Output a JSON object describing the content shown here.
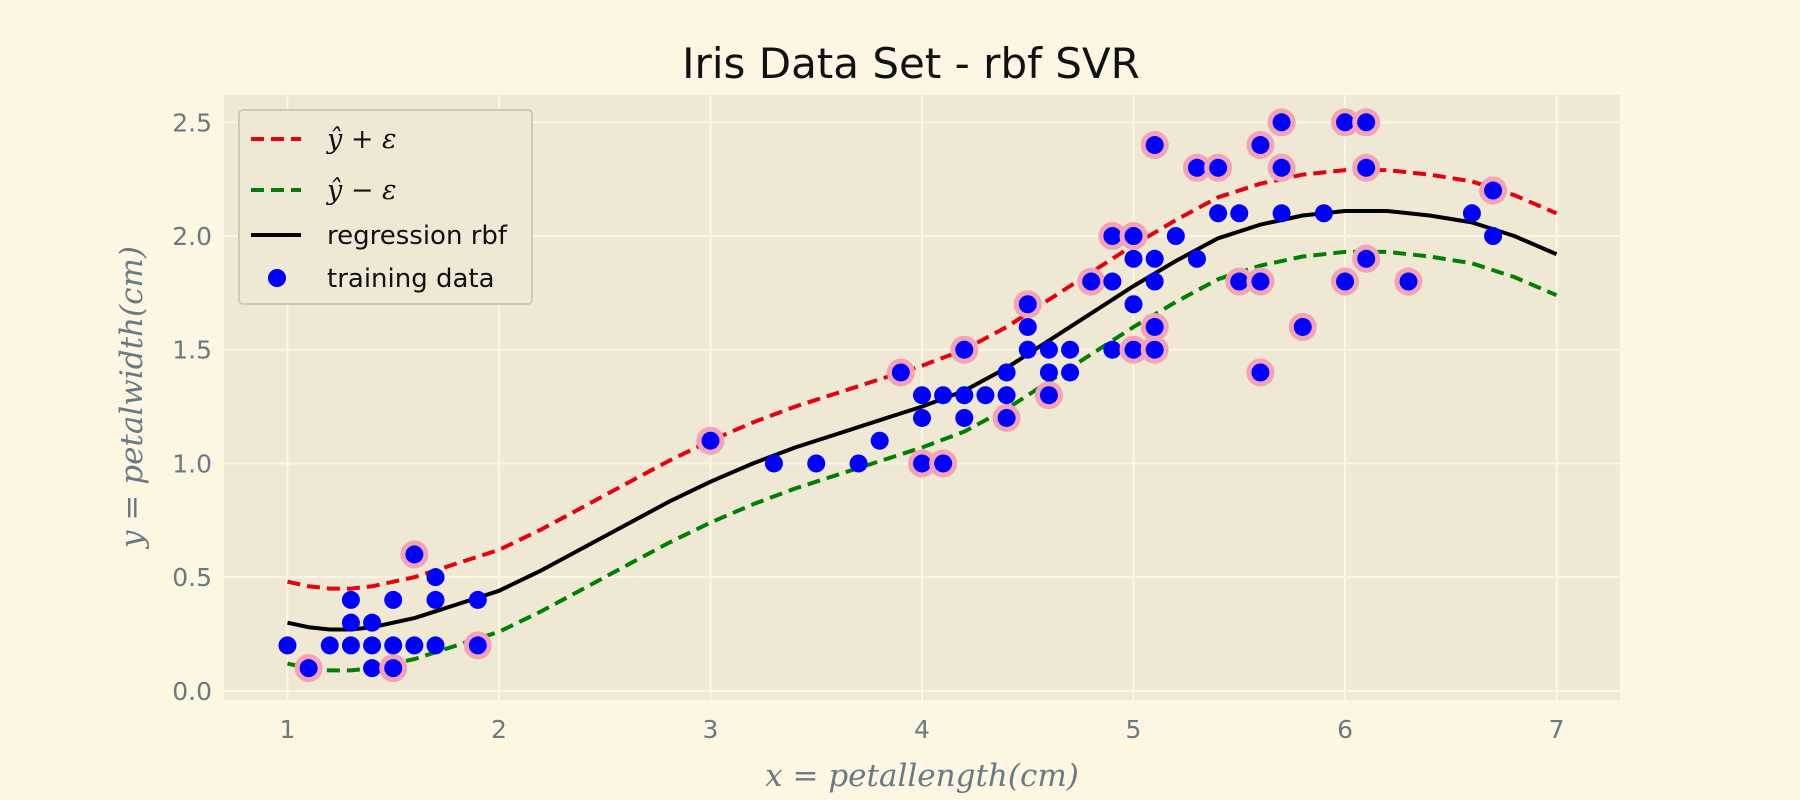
{
  "chart_data": {
    "type": "scatter",
    "title": "Iris Data Set - rbf SVR",
    "xlabel": "x = petallength(cm)",
    "ylabel": "y = petalwidth(cm)",
    "xlim": [
      0.7,
      7.3
    ],
    "ylim": [
      -0.04,
      2.62
    ],
    "xticks": [
      1,
      2,
      3,
      4,
      5,
      6,
      7
    ],
    "yticks": [
      0.0,
      0.5,
      1.0,
      1.5,
      2.0,
      2.5
    ],
    "xtick_labels": [
      "1",
      "2",
      "3",
      "4",
      "5",
      "6",
      "7"
    ],
    "ytick_labels": [
      "0.0",
      "0.5",
      "1.0",
      "1.5",
      "2.0",
      "2.5"
    ],
    "grid": true,
    "legend_position": "top-left",
    "epsilon": 0.18,
    "colors": {
      "background": "#fdf6e3",
      "plot_area": "#eee8d5",
      "grid": "#fdf6e3",
      "upper": "#e8000b",
      "lower": "#008000",
      "regression": "#000000",
      "points": "#0000ff",
      "support_vector_ring": "#f4a3b4",
      "axis_text": "#6a7a82"
    },
    "legend": [
      {
        "label": "ŷ + ε",
        "style": "dashed",
        "color": "#e8000b"
      },
      {
        "label": "ŷ − ε",
        "style": "dashed",
        "color": "#008000"
      },
      {
        "label": "regression rbf",
        "style": "solid",
        "color": "#000000"
      },
      {
        "label": "training data",
        "style": "marker",
        "color": "#0000ff"
      }
    ],
    "series": [
      {
        "name": "regression rbf",
        "x": [
          1.0,
          1.1,
          1.2,
          1.3,
          1.4,
          1.5,
          1.6,
          1.7,
          1.8,
          1.9,
          2.0,
          2.2,
          2.4,
          2.6,
          2.8,
          3.0,
          3.2,
          3.4,
          3.6,
          3.8,
          4.0,
          4.2,
          4.4,
          4.6,
          4.8,
          5.0,
          5.2,
          5.4,
          5.6,
          5.8,
          6.0,
          6.1,
          6.2,
          6.4,
          6.6,
          6.8,
          7.0
        ],
        "y": [
          0.3,
          0.28,
          0.27,
          0.27,
          0.28,
          0.3,
          0.32,
          0.35,
          0.38,
          0.41,
          0.44,
          0.53,
          0.63,
          0.73,
          0.83,
          0.92,
          1.0,
          1.07,
          1.13,
          1.19,
          1.25,
          1.32,
          1.42,
          1.54,
          1.66,
          1.78,
          1.89,
          1.99,
          2.05,
          2.09,
          2.11,
          2.11,
          2.11,
          2.09,
          2.06,
          2.0,
          1.92
        ]
      },
      {
        "name": "ŷ + ε",
        "x": [
          1.0,
          1.1,
          1.2,
          1.3,
          1.4,
          1.5,
          1.6,
          1.7,
          1.8,
          1.9,
          2.0,
          2.2,
          2.4,
          2.6,
          2.8,
          3.0,
          3.2,
          3.4,
          3.6,
          3.8,
          4.0,
          4.2,
          4.4,
          4.6,
          4.8,
          5.0,
          5.2,
          5.4,
          5.6,
          5.8,
          6.0,
          6.1,
          6.2,
          6.4,
          6.6,
          6.8,
          7.0
        ],
        "y": [
          0.48,
          0.46,
          0.45,
          0.45,
          0.46,
          0.48,
          0.5,
          0.53,
          0.56,
          0.59,
          0.62,
          0.71,
          0.81,
          0.91,
          1.01,
          1.1,
          1.18,
          1.25,
          1.31,
          1.37,
          1.43,
          1.5,
          1.6,
          1.72,
          1.84,
          1.96,
          2.07,
          2.17,
          2.23,
          2.27,
          2.29,
          2.29,
          2.29,
          2.27,
          2.24,
          2.18,
          2.1
        ]
      },
      {
        "name": "ŷ − ε",
        "x": [
          1.0,
          1.1,
          1.2,
          1.3,
          1.4,
          1.5,
          1.6,
          1.7,
          1.8,
          1.9,
          2.0,
          2.2,
          2.4,
          2.6,
          2.8,
          3.0,
          3.2,
          3.4,
          3.6,
          3.8,
          4.0,
          4.2,
          4.4,
          4.6,
          4.8,
          5.0,
          5.2,
          5.4,
          5.6,
          5.8,
          6.0,
          6.1,
          6.2,
          6.4,
          6.6,
          6.8,
          7.0
        ],
        "y": [
          0.12,
          0.1,
          0.09,
          0.09,
          0.1,
          0.12,
          0.14,
          0.17,
          0.2,
          0.23,
          0.26,
          0.35,
          0.45,
          0.55,
          0.65,
          0.74,
          0.82,
          0.89,
          0.95,
          1.01,
          1.07,
          1.14,
          1.24,
          1.36,
          1.48,
          1.6,
          1.71,
          1.81,
          1.87,
          1.91,
          1.93,
          1.93,
          1.93,
          1.91,
          1.88,
          1.82,
          1.74
        ]
      }
    ],
    "points": [
      {
        "x": 1.0,
        "y": 0.2,
        "sv": false
      },
      {
        "x": 1.1,
        "y": 0.1,
        "sv": true
      },
      {
        "x": 1.2,
        "y": 0.2,
        "sv": false
      },
      {
        "x": 1.3,
        "y": 0.2,
        "sv": false
      },
      {
        "x": 1.3,
        "y": 0.3,
        "sv": false
      },
      {
        "x": 1.3,
        "y": 0.4,
        "sv": false
      },
      {
        "x": 1.4,
        "y": 0.1,
        "sv": false
      },
      {
        "x": 1.4,
        "y": 0.2,
        "sv": false
      },
      {
        "x": 1.4,
        "y": 0.3,
        "sv": false
      },
      {
        "x": 1.5,
        "y": 0.1,
        "sv": true
      },
      {
        "x": 1.5,
        "y": 0.2,
        "sv": false
      },
      {
        "x": 1.5,
        "y": 0.4,
        "sv": false
      },
      {
        "x": 1.6,
        "y": 0.2,
        "sv": false
      },
      {
        "x": 1.6,
        "y": 0.6,
        "sv": true
      },
      {
        "x": 1.7,
        "y": 0.2,
        "sv": false
      },
      {
        "x": 1.7,
        "y": 0.4,
        "sv": false
      },
      {
        "x": 1.7,
        "y": 0.5,
        "sv": false
      },
      {
        "x": 1.9,
        "y": 0.2,
        "sv": true
      },
      {
        "x": 1.9,
        "y": 0.4,
        "sv": false
      },
      {
        "x": 3.0,
        "y": 1.1,
        "sv": true
      },
      {
        "x": 3.3,
        "y": 1.0,
        "sv": false
      },
      {
        "x": 3.5,
        "y": 1.0,
        "sv": false
      },
      {
        "x": 3.7,
        "y": 1.0,
        "sv": false
      },
      {
        "x": 3.8,
        "y": 1.1,
        "sv": false
      },
      {
        "x": 3.9,
        "y": 1.4,
        "sv": true
      },
      {
        "x": 4.0,
        "y": 1.0,
        "sv": true
      },
      {
        "x": 4.0,
        "y": 1.2,
        "sv": false
      },
      {
        "x": 4.0,
        "y": 1.3,
        "sv": false
      },
      {
        "x": 4.1,
        "y": 1.0,
        "sv": true
      },
      {
        "x": 4.1,
        "y": 1.3,
        "sv": false
      },
      {
        "x": 4.2,
        "y": 1.2,
        "sv": false
      },
      {
        "x": 4.2,
        "y": 1.3,
        "sv": false
      },
      {
        "x": 4.2,
        "y": 1.5,
        "sv": true
      },
      {
        "x": 4.3,
        "y": 1.3,
        "sv": false
      },
      {
        "x": 4.4,
        "y": 1.2,
        "sv": true
      },
      {
        "x": 4.4,
        "y": 1.3,
        "sv": false
      },
      {
        "x": 4.4,
        "y": 1.4,
        "sv": false
      },
      {
        "x": 4.5,
        "y": 1.5,
        "sv": false
      },
      {
        "x": 4.5,
        "y": 1.6,
        "sv": false
      },
      {
        "x": 4.5,
        "y": 1.7,
        "sv": true
      },
      {
        "x": 4.6,
        "y": 1.3,
        "sv": true
      },
      {
        "x": 4.6,
        "y": 1.4,
        "sv": false
      },
      {
        "x": 4.6,
        "y": 1.5,
        "sv": false
      },
      {
        "x": 4.7,
        "y": 1.4,
        "sv": false
      },
      {
        "x": 4.7,
        "y": 1.5,
        "sv": false
      },
      {
        "x": 4.8,
        "y": 1.8,
        "sv": true
      },
      {
        "x": 4.9,
        "y": 1.5,
        "sv": false
      },
      {
        "x": 4.9,
        "y": 1.8,
        "sv": false
      },
      {
        "x": 4.9,
        "y": 2.0,
        "sv": true
      },
      {
        "x": 5.0,
        "y": 1.5,
        "sv": true
      },
      {
        "x": 5.0,
        "y": 1.7,
        "sv": false
      },
      {
        "x": 5.0,
        "y": 1.9,
        "sv": false
      },
      {
        "x": 5.0,
        "y": 2.0,
        "sv": true
      },
      {
        "x": 5.1,
        "y": 1.5,
        "sv": true
      },
      {
        "x": 5.1,
        "y": 1.6,
        "sv": true
      },
      {
        "x": 5.1,
        "y": 1.8,
        "sv": false
      },
      {
        "x": 5.1,
        "y": 1.9,
        "sv": false
      },
      {
        "x": 5.1,
        "y": 2.4,
        "sv": true
      },
      {
        "x": 5.2,
        "y": 2.0,
        "sv": false
      },
      {
        "x": 5.3,
        "y": 1.9,
        "sv": false
      },
      {
        "x": 5.3,
        "y": 2.3,
        "sv": true
      },
      {
        "x": 5.4,
        "y": 2.1,
        "sv": false
      },
      {
        "x": 5.4,
        "y": 2.3,
        "sv": true
      },
      {
        "x": 5.5,
        "y": 1.8,
        "sv": true
      },
      {
        "x": 5.5,
        "y": 2.1,
        "sv": false
      },
      {
        "x": 5.6,
        "y": 1.4,
        "sv": true
      },
      {
        "x": 5.6,
        "y": 1.8,
        "sv": true
      },
      {
        "x": 5.6,
        "y": 2.4,
        "sv": true
      },
      {
        "x": 5.7,
        "y": 2.1,
        "sv": false
      },
      {
        "x": 5.7,
        "y": 2.3,
        "sv": true
      },
      {
        "x": 5.7,
        "y": 2.5,
        "sv": true
      },
      {
        "x": 5.8,
        "y": 1.6,
        "sv": true
      },
      {
        "x": 5.9,
        "y": 2.1,
        "sv": false
      },
      {
        "x": 6.0,
        "y": 1.8,
        "sv": true
      },
      {
        "x": 6.0,
        "y": 2.5,
        "sv": true
      },
      {
        "x": 6.1,
        "y": 1.9,
        "sv": true
      },
      {
        "x": 6.1,
        "y": 2.3,
        "sv": true
      },
      {
        "x": 6.1,
        "y": 2.5,
        "sv": true
      },
      {
        "x": 6.3,
        "y": 1.8,
        "sv": true
      },
      {
        "x": 6.6,
        "y": 2.1,
        "sv": false
      },
      {
        "x": 6.7,
        "y": 2.0,
        "sv": false
      },
      {
        "x": 6.7,
        "y": 2.2,
        "sv": true
      }
    ]
  }
}
